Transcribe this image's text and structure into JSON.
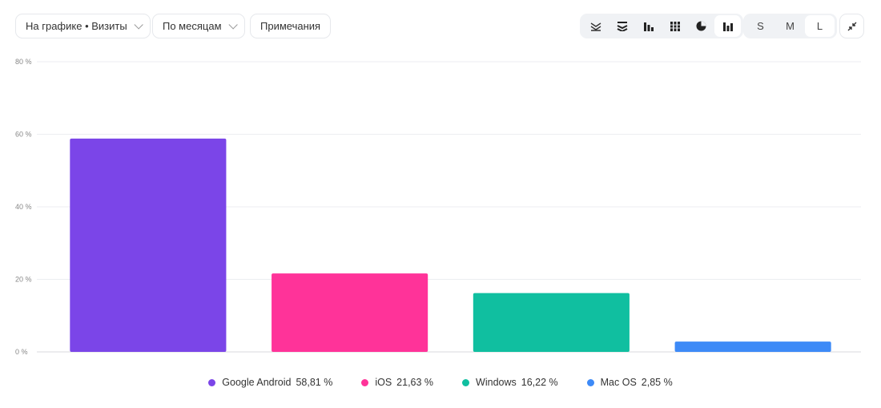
{
  "toolbar": {
    "metric": "На графике • Визиты",
    "period": "По месяцам",
    "notes": "Примечания",
    "chart_types": [
      "lines-icon",
      "stacked-area-icon",
      "bar-icon",
      "stacked-bar-icon",
      "pie-icon",
      "column-icon"
    ],
    "sizes": [
      "S",
      "M",
      "L"
    ],
    "selected_size": "L"
  },
  "chart_data": {
    "type": "bar",
    "categories": [
      "Google Android",
      "iOS",
      "Windows",
      "Mac OS"
    ],
    "values": [
      58.81,
      21.63,
      16.22,
      2.85
    ],
    "labels": [
      "58,81 %",
      "21,63 %",
      "16,22 %",
      "2,85 %"
    ],
    "colors": [
      "#7b45e8",
      "#ff3399",
      "#10bfa0",
      "#3d8af7"
    ],
    "ylim": [
      0,
      80
    ],
    "yticks": [
      "0 %",
      "20 %",
      "40 %",
      "60 %",
      "80 %"
    ],
    "grid": true,
    "legend": "bottom"
  }
}
